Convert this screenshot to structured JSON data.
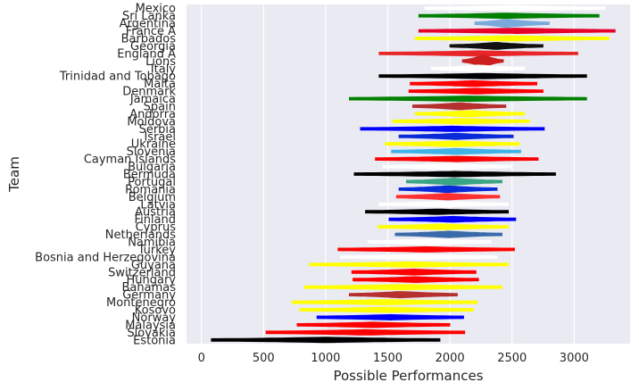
{
  "chart_data": {
    "type": "violin",
    "xlabel": "Possible Performances",
    "ylabel": "Team",
    "xlim": [
      -120,
      3450
    ],
    "xticks": [
      0,
      500,
      1000,
      1500,
      2000,
      2500,
      3000
    ],
    "grid": true,
    "background": "#eaeaf2",
    "teams": [
      {
        "name": "Mexico",
        "min": 1800,
        "max": 3250,
        "center": 2500,
        "color": "#ffffff"
      },
      {
        "name": "Sri Lanka",
        "min": 1750,
        "max": 3200,
        "center": 2450,
        "color": "#008000"
      },
      {
        "name": "Argentina",
        "min": 2200,
        "max": 2800,
        "center": 2450,
        "color": "#7aa9db"
      },
      {
        "name": "France A",
        "min": 1750,
        "max": 3330,
        "center": 2550,
        "color": "#e8002a"
      },
      {
        "name": "Barbados",
        "min": 1720,
        "max": 3280,
        "center": 2500,
        "color": "#ffff00"
      },
      {
        "name": "Georgia",
        "min": 2000,
        "max": 2750,
        "center": 2370,
        "color": "#111111"
      },
      {
        "name": "England A",
        "min": 1430,
        "max": 3030,
        "center": 2230,
        "color": "#e8262a"
      },
      {
        "name": "Lions",
        "min": 2100,
        "max": 2430,
        "center": 2270,
        "color": "#cc1f1f"
      },
      {
        "name": "Italy",
        "min": 1850,
        "max": 2600,
        "center": 2230,
        "color": "#ffffff"
      },
      {
        "name": "Trinidad and Tobago",
        "min": 1430,
        "max": 3100,
        "center": 2270,
        "color": "#000000"
      },
      {
        "name": "Malta",
        "min": 1680,
        "max": 2700,
        "center": 2190,
        "color": "#ff0000"
      },
      {
        "name": "Denmark",
        "min": 1670,
        "max": 2750,
        "center": 2210,
        "color": "#ff0000"
      },
      {
        "name": "Jamaica",
        "min": 1190,
        "max": 3100,
        "center": 2140,
        "color": "#008000"
      },
      {
        "name": "Spain",
        "min": 1700,
        "max": 2450,
        "center": 2080,
        "color": "#b5302e"
      },
      {
        "name": "Andorra",
        "min": 1720,
        "max": 2600,
        "center": 2160,
        "color": "#ffff00"
      },
      {
        "name": "Moldova",
        "min": 1540,
        "max": 2640,
        "center": 2090,
        "color": "#ffff00"
      },
      {
        "name": "Serbia",
        "min": 1280,
        "max": 2760,
        "center": 2020,
        "color": "#0000ff"
      },
      {
        "name": "Israel",
        "min": 1590,
        "max": 2510,
        "center": 2050,
        "color": "#0a2bd8"
      },
      {
        "name": "Ukraine",
        "min": 1480,
        "max": 2560,
        "center": 2020,
        "color": "#ffff00"
      },
      {
        "name": "Slovenia",
        "min": 1530,
        "max": 2570,
        "center": 2050,
        "color": "#3db3e8"
      },
      {
        "name": "Cayman Islands",
        "min": 1400,
        "max": 2710,
        "center": 2050,
        "color": "#ff0000"
      },
      {
        "name": "Bulgaria",
        "min": 1460,
        "max": 2500,
        "center": 1980,
        "color": "#ffffff"
      },
      {
        "name": "Bermuda",
        "min": 1230,
        "max": 2850,
        "center": 2040,
        "color": "#000000"
      },
      {
        "name": "Portugal",
        "min": 1650,
        "max": 2420,
        "center": 2030,
        "color": "#3aa582"
      },
      {
        "name": "Romania",
        "min": 1590,
        "max": 2380,
        "center": 1980,
        "color": "#0a2bd8"
      },
      {
        "name": "Belgium",
        "min": 1570,
        "max": 2400,
        "center": 1980,
        "color": "#ff3030"
      },
      {
        "name": "Latvia",
        "min": 1430,
        "max": 2470,
        "center": 1950,
        "color": "#ffffff"
      },
      {
        "name": "Austria",
        "min": 1320,
        "max": 2470,
        "center": 1900,
        "color": "#000000"
      },
      {
        "name": "Finland",
        "min": 1510,
        "max": 2530,
        "center": 2020,
        "color": "#0000ff"
      },
      {
        "name": "Cyprus",
        "min": 1420,
        "max": 2470,
        "center": 1940,
        "color": "#ffff00"
      },
      {
        "name": "Netherlands",
        "min": 1560,
        "max": 2420,
        "center": 1990,
        "color": "#3a6aa8"
      },
      {
        "name": "Namibia",
        "min": 1340,
        "max": 2330,
        "center": 1850,
        "color": "#ffffff"
      },
      {
        "name": "Turkey",
        "min": 1100,
        "max": 2520,
        "center": 1810,
        "color": "#ff0000"
      },
      {
        "name": "Bosnia and Herzegovina",
        "min": 1120,
        "max": 2380,
        "center": 1750,
        "color": "#ffffff"
      },
      {
        "name": "Guyana",
        "min": 870,
        "max": 2470,
        "center": 1670,
        "color": "#ffff00"
      },
      {
        "name": "Switzerland",
        "min": 1210,
        "max": 2210,
        "center": 1710,
        "color": "#ff0000"
      },
      {
        "name": "Hungary",
        "min": 1220,
        "max": 2230,
        "center": 1720,
        "color": "#ff0000"
      },
      {
        "name": "Bahamas",
        "min": 830,
        "max": 2420,
        "center": 1620,
        "color": "#ffff00"
      },
      {
        "name": "Germany",
        "min": 1190,
        "max": 2060,
        "center": 1600,
        "color": "#b5302e"
      },
      {
        "name": "Montenegro",
        "min": 730,
        "max": 2220,
        "center": 1470,
        "color": "#ffff00"
      },
      {
        "name": "Kosovo",
        "min": 790,
        "max": 2190,
        "center": 1490,
        "color": "#ffff00"
      },
      {
        "name": "Norway",
        "min": 930,
        "max": 2110,
        "center": 1520,
        "color": "#0000ff"
      },
      {
        "name": "Malaysia",
        "min": 770,
        "max": 2000,
        "center": 1380,
        "color": "#ff0000"
      },
      {
        "name": "Slovakia",
        "min": 520,
        "max": 2120,
        "center": 1320,
        "color": "#ff0000"
      },
      {
        "name": "Estonia",
        "min": 80,
        "max": 1920,
        "center": 1000,
        "color": "#000000"
      }
    ]
  }
}
